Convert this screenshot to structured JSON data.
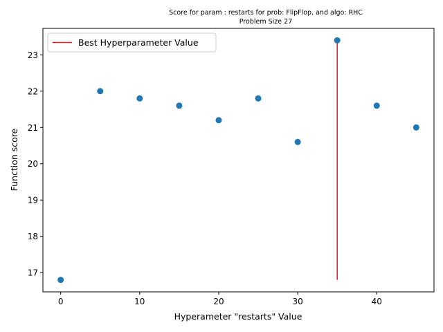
{
  "chart_data": {
    "type": "scatter",
    "title": "Score for param : restarts for prob: FlipFlop, and algo: RHC",
    "subtitle": "Problem Size 27",
    "xlabel": "Hyperameter \"restarts\" Value",
    "ylabel": "Function score",
    "xlim": [
      -2.25,
      47.25
    ],
    "ylim": [
      16.47,
      23.73
    ],
    "xticks": [
      0,
      10,
      20,
      30,
      40
    ],
    "yticks": [
      17,
      18,
      19,
      20,
      21,
      22,
      23
    ],
    "grid": false,
    "legend_position": "upper-left",
    "series": [
      {
        "color": "#1f77b4",
        "x": [
          0,
          5,
          10,
          15,
          20,
          25,
          30,
          35,
          40,
          45
        ],
        "y": [
          16.8,
          22.0,
          21.8,
          21.6,
          21.2,
          21.8,
          20.6,
          23.4,
          21.6,
          21.0
        ]
      }
    ],
    "best_line": {
      "name": "Best Hyperparameter Value",
      "color": "#e41a1c",
      "x": 35,
      "y_from": 16.8,
      "y_to": 23.4
    }
  }
}
